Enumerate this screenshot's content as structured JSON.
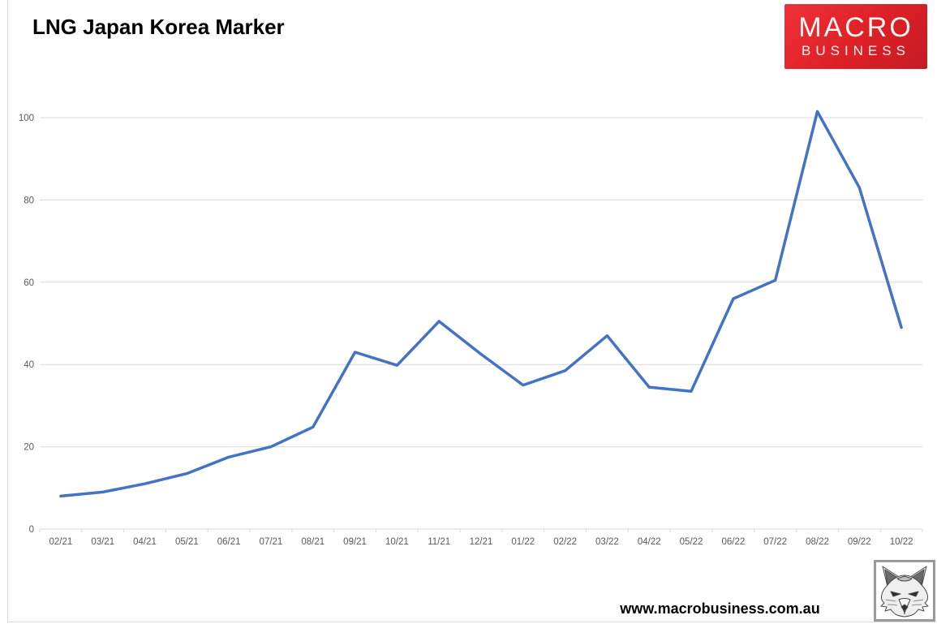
{
  "header": {
    "title": "LNG Japan Korea Marker"
  },
  "logo": {
    "line1": "MACRO",
    "line2": "BUSINESS",
    "bg_color": "#DD2026",
    "text_color": "#FDF5F4"
  },
  "footer": {
    "website": "www.macrobusiness.com.au",
    "fox_icon": "fox-head-sketch"
  },
  "chart_data": {
    "type": "line",
    "title": "LNG Japan Korea Marker",
    "categories": [
      "02/21",
      "03/21",
      "04/21",
      "05/21",
      "06/21",
      "07/21",
      "08/21",
      "09/21",
      "10/21",
      "11/21",
      "12/21",
      "01/22",
      "02/22",
      "03/22",
      "04/22",
      "05/22",
      "06/22",
      "07/22",
      "08/22",
      "09/22",
      "10/22"
    ],
    "series": [
      {
        "name": "LNG Japan Korea Marker",
        "color": "#4472C4",
        "values": [
          8,
          9,
          11,
          13.5,
          17.5,
          20,
          24.8,
          43,
          39.8,
          50.5,
          42.5,
          35,
          38.5,
          47,
          34.5,
          33.5,
          56,
          60.5,
          101.5,
          83,
          49
        ]
      }
    ],
    "xlabel": "",
    "ylabel": "",
    "y_ticks": [
      0,
      20,
      40,
      60,
      80,
      100
    ],
    "ylim": [
      0,
      100
    ],
    "grid": true,
    "legend": false,
    "gridline_color": "#D9D9D9",
    "axis_color": "#D9D9D9",
    "tick_label_color": "#595959",
    "line_width": 3.5
  }
}
